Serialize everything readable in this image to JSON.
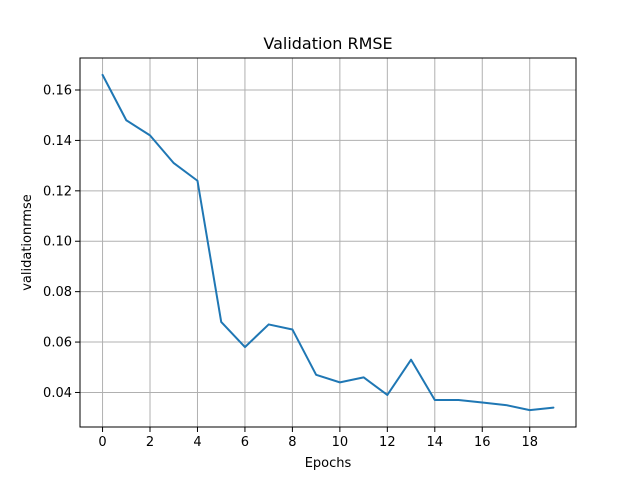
{
  "chart_data": {
    "type": "line",
    "title": "Validation RMSE",
    "xlabel": "Epochs",
    "ylabel": "validationrmse",
    "x": [
      0,
      1,
      2,
      3,
      4,
      5,
      6,
      7,
      8,
      9,
      10,
      11,
      12,
      13,
      14,
      15,
      16,
      17,
      18,
      19
    ],
    "series": [
      {
        "values": [
          0.166,
          0.148,
          0.142,
          0.131,
          0.124,
          0.068,
          0.058,
          0.067,
          0.065,
          0.047,
          0.044,
          0.046,
          0.039,
          0.053,
          0.037,
          0.037,
          0.036,
          0.035,
          0.033,
          0.034
        ]
      }
    ],
    "xlim": [
      -0.95,
      19.95
    ],
    "ylim": [
      0.0263,
      0.1727
    ],
    "xticks": [
      0,
      2,
      4,
      6,
      8,
      10,
      12,
      14,
      16,
      18
    ],
    "xtick_labels": [
      "0",
      "2",
      "4",
      "6",
      "8",
      "10",
      "12",
      "14",
      "16",
      "18"
    ],
    "yticks": [
      0.04,
      0.06,
      0.08,
      0.1,
      0.12,
      0.14,
      0.16
    ],
    "ytick_labels": [
      "0.04",
      "0.06",
      "0.08",
      "0.10",
      "0.12",
      "0.14",
      "0.16"
    ],
    "grid": true,
    "colors": {
      "series": "#1f77b4",
      "grid": "#b0b0b0"
    }
  }
}
